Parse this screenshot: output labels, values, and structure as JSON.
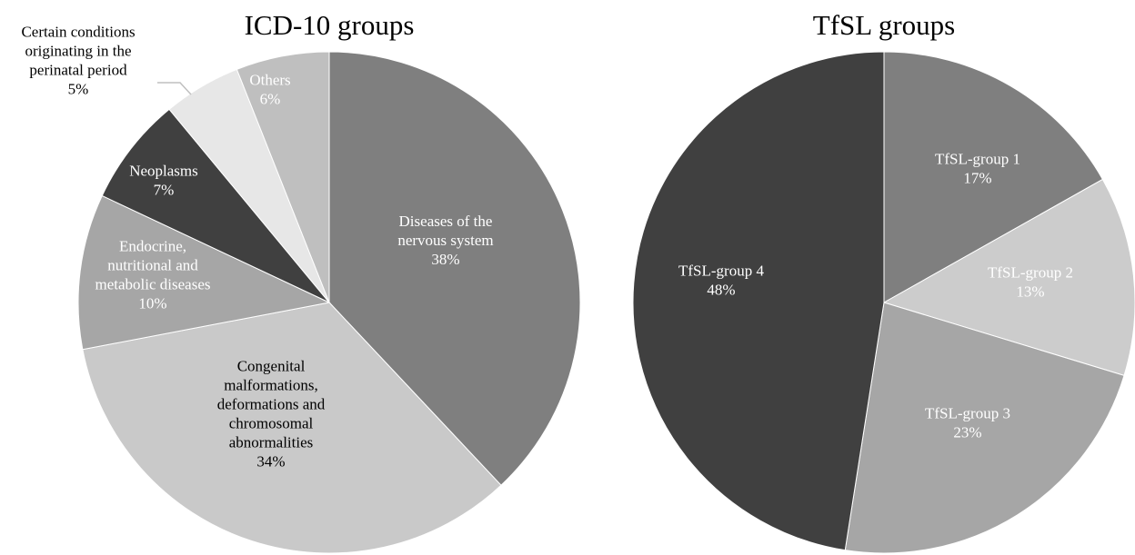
{
  "chart_data": [
    {
      "type": "pie",
      "title": "ICD-10 groups",
      "start_angle_deg": 0,
      "direction": "clockwise",
      "slices": [
        {
          "name": "Diseases of the nervous system",
          "lines": [
            "Diseases of the",
            "nervous system"
          ],
          "value": 38,
          "label": "38%",
          "color": "#7f7f7f",
          "text_color": "#ffffff"
        },
        {
          "name": "Congenital malformations, deformations and chromosomal abnormalities",
          "lines": [
            "Congenital",
            "malformations,",
            "deformations and",
            "chromosomal",
            "abnormalities"
          ],
          "value": 34,
          "label": "34%",
          "color": "#c9c9c9",
          "text_color": "#000000"
        },
        {
          "name": "Endocrine, nutritional and metabolic diseases",
          "lines": [
            "Endocrine,",
            "nutritional and",
            "metabolic diseases"
          ],
          "value": 10,
          "label": "10%",
          "color": "#a6a6a6",
          "text_color": "#ffffff"
        },
        {
          "name": "Neoplasms",
          "lines": [
            "Neoplasms"
          ],
          "value": 7,
          "label": "7%",
          "color": "#404040",
          "text_color": "#ffffff"
        },
        {
          "name": "Certain conditions originating in the perinatal period",
          "lines": [
            "Certain conditions",
            "originating in the",
            "perinatal period"
          ],
          "value": 5,
          "label": "5%",
          "color": "#e7e7e7",
          "text_color": "#000000",
          "outside_label": true
        },
        {
          "name": "Others",
          "lines": [
            "Others"
          ],
          "value": 6,
          "label": "6%",
          "color": "#bfbfbf",
          "text_color": "#ffffff"
        }
      ]
    },
    {
      "type": "pie",
      "title": "TfSL groups",
      "start_angle_deg": 0,
      "direction": "clockwise",
      "slices": [
        {
          "name": "TfSL-group 1",
          "lines": [
            "TfSL-group 1"
          ],
          "value": 17,
          "label": "17%",
          "color": "#7f7f7f",
          "text_color": "#ffffff"
        },
        {
          "name": "TfSL-group 2",
          "lines": [
            "TfSL-group 2"
          ],
          "value": 13,
          "label": "13%",
          "color": "#cccccc",
          "text_color": "#ffffff"
        },
        {
          "name": "TfSL-group 3",
          "lines": [
            "TfSL-group 3"
          ],
          "value": 23,
          "label": "23%",
          "color": "#a6a6a6",
          "text_color": "#ffffff"
        },
        {
          "name": "TfSL-group 4",
          "lines": [
            "TfSL-group 4"
          ],
          "value": 48,
          "label": "48%",
          "color": "#404040",
          "text_color": "#ffffff"
        }
      ]
    }
  ]
}
